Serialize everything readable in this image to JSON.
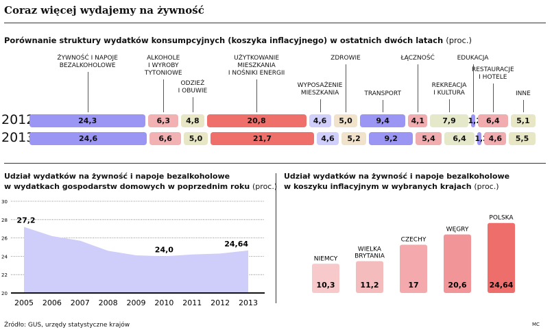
{
  "title": "Coraz więcej wydajemy na żywność",
  "subtitle": "Porównanie struktury wydatków konsumpcyjnych (koszyka inflacyjnego) w ostatnich dwóch latach",
  "subtitle_unit": "(proc.)",
  "source": "Źródło: GUS, urzędy statystyczne krajów",
  "credit": "MC",
  "chart_data": [
    {
      "type": "bar",
      "stacked": true,
      "orientation": "horizontal",
      "categories": [
        "ŻYWNOŚĆ I NAPOJE\nBEZALKOHOLOWE",
        "ALKOHOLE\nI WYROBY\nTYTONIOWE",
        "ODZIEŻ\nI OBUWIE",
        "UŻYTKOWANIE\nMIESZKANIA\nI NOŚNIKI ENERGII",
        "WYPOSAŻENIE\nMIESZKANIA",
        "ZDROWIE",
        "TRANSPORT",
        "ŁĄCZNOŚĆ",
        "REKREACJA\nI KULTURA",
        "EDUKACJA",
        "RESTAURACJE\nI HOTELE",
        "INNE"
      ],
      "colors": [
        "#9b95f4",
        "#f2b2b4",
        "#e7e7c6",
        "#ef6f6b",
        "#d0cefa",
        "#f1e2cb",
        "#9b95f4",
        "#f1acaf",
        "#e5e9ca",
        "#9b95f4",
        "#f1acaf",
        "#e7e7c6"
      ],
      "series": [
        {
          "name": "2012",
          "values": [
            24.3,
            6.3,
            4.8,
            20.8,
            4.6,
            5.0,
            9.4,
            4.1,
            7.9,
            1.2,
            6.4,
            5.1
          ],
          "labels": [
            "24,3",
            "6,3",
            "4,8",
            "20,8",
            "4,6",
            "5,0",
            "9,4",
            "4,1",
            "7,9",
            "1,2",
            "6,4",
            "5,1"
          ]
        },
        {
          "name": "2013",
          "values": [
            24.6,
            6.6,
            5.0,
            21.7,
            4.6,
            5.2,
            9.2,
            5.4,
            6.4,
            1.2,
            4.6,
            5.5
          ],
          "labels": [
            "24,6",
            "6,6",
            "5,0",
            "21,7",
            "4,6",
            "5,2",
            "9,2",
            "5,4",
            "6,4",
            "1,2",
            "4,6",
            "5,5"
          ]
        }
      ]
    },
    {
      "type": "area",
      "title": "Udział wydatków na żywność i napoje bezalkoholowe\nw wydatkach gospodarstw domowych w poprzednim roku",
      "unit": "(proc.)",
      "x": [
        2005,
        2006,
        2007,
        2008,
        2009,
        2010,
        2011,
        2012,
        2013
      ],
      "values": [
        27.2,
        26.2,
        25.7,
        24.6,
        24.1,
        24.0,
        24.2,
        24.3,
        24.64
      ],
      "annotations": [
        {
          "x": 2005,
          "label": "27,2"
        },
        {
          "x": 2010,
          "label": "24,0"
        },
        {
          "x": 2013,
          "label": "24,64"
        }
      ],
      "ylim": [
        20,
        30
      ],
      "yticks": [
        20,
        22,
        24,
        26,
        28,
        30
      ],
      "grid": true,
      "color": "#cfcdfa"
    },
    {
      "type": "bar",
      "title": "Udział wydatków na żywność i napoje bezalkoholowe\nw koszyku inflacyjnym w wybranych krajach",
      "unit": "(proc.)",
      "categories": [
        "NIEMCY",
        "WIELKA\nBRYTANIA",
        "CZECHY",
        "WĘGRY",
        "POLSKA"
      ],
      "values": [
        10.3,
        11.2,
        17,
        20.6,
        24.64
      ],
      "labels": [
        "10,3",
        "11,2",
        "17",
        "20,6",
        "24,64"
      ],
      "colors": [
        "#f7c9cb",
        "#f5bcbe",
        "#f4aaad",
        "#f29598",
        "#ee6e6c"
      ]
    }
  ]
}
